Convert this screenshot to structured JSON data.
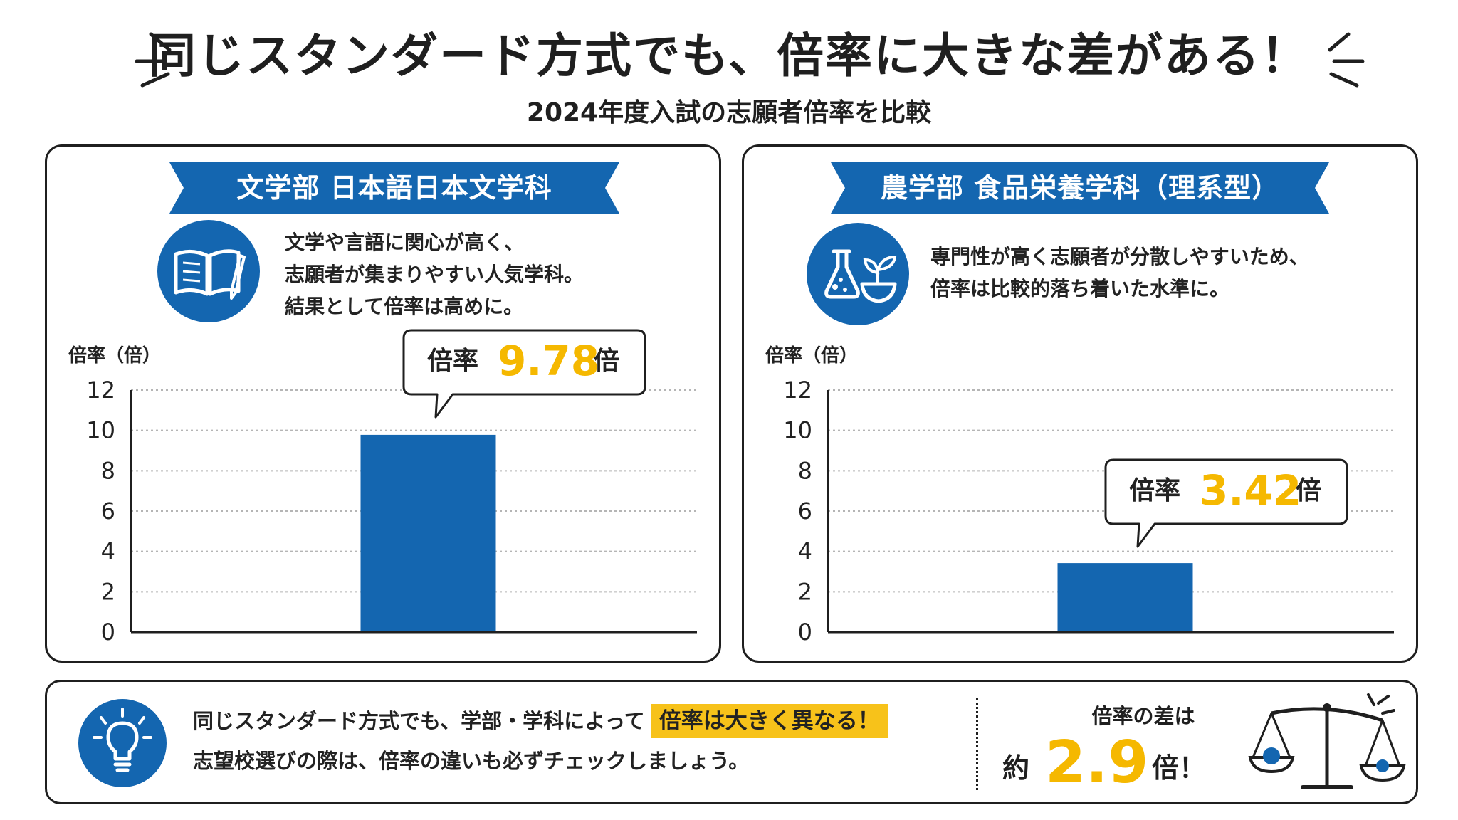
{
  "title": "同じスタンダード方式でも、倍率に大きな差がある！",
  "subtitle": "2024年度入試の志願者倍率を比較",
  "colors": {
    "primary_blue": "#1466b0",
    "accent_yellow": "#f5b800",
    "highlight_yellow": "#f7c21a"
  },
  "panels": [
    {
      "ribbon": "文学部 日本語日本文学科",
      "icon": "open-book-pencil-icon",
      "description": [
        "文学や言語に関心が高く、",
        "志願者が集まりやすい人気学科。",
        "結果として倍率は高めに。"
      ],
      "callout": {
        "label": "倍率",
        "value": "9.78",
        "unit": "倍"
      }
    },
    {
      "ribbon": "農学部 食品栄養学科（理系型）",
      "icon": "flask-and-plant-bowl-icon",
      "description": [
        "専門性が高く志願者が分散しやすいため、",
        "倍率は比較的落ち着いた水準に。"
      ],
      "callout": {
        "label": "倍率",
        "value": "3.42",
        "unit": "倍"
      }
    }
  ],
  "chart_data": [
    {
      "type": "bar",
      "ylabel": "倍率（倍）",
      "ylim": [
        0,
        12
      ],
      "yticks": [
        0,
        2,
        4,
        6,
        8,
        10,
        12
      ],
      "grid": true,
      "categories": [
        "文学部 日本語日本文学科"
      ],
      "values": [
        9.78
      ]
    },
    {
      "type": "bar",
      "ylabel": "倍率（倍）",
      "ylim": [
        0,
        12
      ],
      "yticks": [
        0,
        2,
        4,
        6,
        8,
        10,
        12
      ],
      "grid": true,
      "categories": [
        "農学部 食品栄養学科（理系型）"
      ],
      "values": [
        3.42
      ]
    }
  ],
  "bottom": {
    "icon": "lightbulb-icon",
    "line1": "同じスタンダード方式でも、学部・学科によって",
    "highlight": "倍率は大きく異なる！",
    "line2": "志望校選びの際は、倍率の違いも必ずチェックしましょう。",
    "diff_label": "倍率の差は",
    "diff_prefix": "約",
    "diff_value": "2.9",
    "diff_unit": "倍！",
    "scale_icon": "balance-scale-icon"
  }
}
